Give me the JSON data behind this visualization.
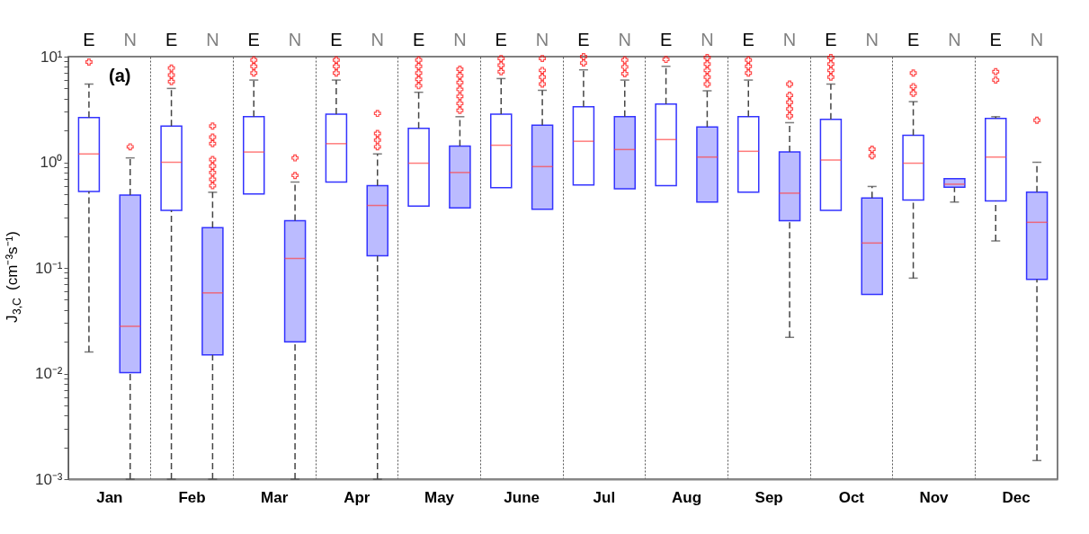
{
  "chart_data": {
    "type": "box",
    "categories": [
      "Jan",
      "Feb",
      "Mar",
      "Apr",
      "May",
      "June",
      "Jul",
      "Aug",
      "Sep",
      "Oct",
      "Nov",
      "Dec"
    ],
    "ylabel": "J$_{3,C}$ (cm⁻³s⁻¹)",
    "annotations": [
      "(a)"
    ],
    "log": true,
    "grid": "x",
    "ylim": [
      0.001,
      10
    ],
    "yticks": [
      {
        "value": 0.001,
        "label": "10⁻³"
      },
      {
        "value": 0.002,
        "label": null
      },
      {
        "value": 0.003,
        "label": null
      },
      {
        "value": 0.004,
        "label": null
      },
      {
        "value": 0.005,
        "label": null
      },
      {
        "value": 0.006,
        "label": null
      },
      {
        "value": 0.007,
        "label": null
      },
      {
        "value": 0.008,
        "label": null
      },
      {
        "value": 0.009,
        "label": null
      },
      {
        "value": 0.01,
        "label": "10⁻²"
      },
      {
        "value": 0.02,
        "label": null
      },
      {
        "value": 0.03,
        "label": null
      },
      {
        "value": 0.04,
        "label": null
      },
      {
        "value": 0.05,
        "label": null
      },
      {
        "value": 0.06,
        "label": null
      },
      {
        "value": 0.07,
        "label": null
      },
      {
        "value": 0.08,
        "label": null
      },
      {
        "value": 0.09,
        "label": null
      },
      {
        "value": 0.1,
        "label": "10⁻¹"
      },
      {
        "value": 0.2,
        "label": null
      },
      {
        "value": 0.3,
        "label": null
      },
      {
        "value": 0.4,
        "label": null
      },
      {
        "value": 0.5,
        "label": null
      },
      {
        "value": 0.6,
        "label": null
      },
      {
        "value": 0.7,
        "label": null
      },
      {
        "value": 0.8,
        "label": null
      },
      {
        "value": 0.9,
        "label": null
      },
      {
        "value": 1,
        "label": "10⁰"
      },
      {
        "value": 2,
        "label": null
      },
      {
        "value": 3,
        "label": null
      },
      {
        "value": 4,
        "label": null
      },
      {
        "value": 5,
        "label": null
      },
      {
        "value": 6,
        "label": null
      },
      {
        "value": 7,
        "label": null
      },
      {
        "value": 8,
        "label": null
      },
      {
        "value": 9,
        "label": null
      },
      {
        "value": 10,
        "label": "10¹"
      }
    ],
    "series": [
      {
        "name": "E",
        "color": "#ffffff",
        "boxes": [
          {
            "low": 0.016,
            "q1": 0.53,
            "median": 1.2,
            "q3": 2.65,
            "high": 5.5,
            "outliers": [
              8.9
            ]
          },
          {
            "low": 0.001,
            "q1": 0.35,
            "median": 1.0,
            "q3": 2.2,
            "high": 5.0,
            "outliers": [
              5.8,
              6.7,
              7.8
            ]
          },
          {
            "low": 0.5,
            "q1": 0.5,
            "median": 1.25,
            "q3": 2.7,
            "high": 6.0,
            "outliers": [
              7,
              8.1,
              9.3
            ]
          },
          {
            "low": 0.65,
            "q1": 0.65,
            "median": 1.5,
            "q3": 2.85,
            "high": 6.0,
            "outliers": [
              7,
              8.1,
              9.3
            ]
          },
          {
            "low": 0.385,
            "q1": 0.385,
            "median": 0.98,
            "q3": 2.1,
            "high": 4.6,
            "outliers": [
              5.3,
              6.1,
              7,
              8.1,
              9.3
            ]
          },
          {
            "low": 0.575,
            "q1": 0.575,
            "median": 1.45,
            "q3": 2.85,
            "high": 6.2,
            "outliers": [
              7.2,
              8.3,
              9.6
            ]
          },
          {
            "low": 0.61,
            "q1": 0.61,
            "median": 1.58,
            "q3": 3.36,
            "high": 7.5,
            "outliers": [
              8.7,
              10
            ]
          },
          {
            "low": 0.6,
            "q1": 0.6,
            "median": 1.64,
            "q3": 3.55,
            "high": 8.1,
            "outliers": [
              9.4
            ]
          },
          {
            "low": 0.52,
            "q1": 0.52,
            "median": 1.27,
            "q3": 2.7,
            "high": 6.0,
            "outliers": [
              7,
              8.1,
              9.3
            ]
          },
          {
            "low": 0.35,
            "q1": 0.35,
            "median": 1.05,
            "q3": 2.55,
            "high": 5.5,
            "outliers": [
              6.4,
              7.4,
              8.5,
              9.8
            ]
          },
          {
            "low": 0.08,
            "q1": 0.44,
            "median": 0.98,
            "q3": 1.8,
            "high": 3.75,
            "outliers": [
              4.5,
              5.2,
              7
            ]
          },
          {
            "low": 0.18,
            "q1": 0.43,
            "median": 1.12,
            "q3": 2.6,
            "high": 2.7,
            "outliers": [
              6,
              7.2
            ]
          }
        ]
      },
      {
        "name": "N",
        "color": "#bbbbff",
        "boxes": [
          {
            "low": 0.001,
            "q1": 0.0102,
            "median": 0.028,
            "q3": 0.49,
            "high": 1.1,
            "outliers": [
              1.4
            ]
          },
          {
            "low": 0.001,
            "q1": 0.015,
            "median": 0.058,
            "q3": 0.24,
            "high": 0.52,
            "outliers": [
              0.6,
              0.69,
              0.8,
              0.92,
              1.06,
              1.5,
              1.73,
              2.2
            ]
          },
          {
            "low": 0.001,
            "q1": 0.02,
            "median": 0.123,
            "q3": 0.28,
            "high": 0.65,
            "outliers": [
              0.75,
              1.1
            ]
          },
          {
            "low": 0.001,
            "q1": 0.13,
            "median": 0.39,
            "q3": 0.6,
            "high": 1.2,
            "outliers": [
              1.4,
              1.62,
              1.87,
              2.9
            ]
          },
          {
            "low": 0.37,
            "q1": 0.37,
            "median": 0.8,
            "q3": 1.42,
            "high": 2.7,
            "outliers": [
              3.1,
              3.6,
              4.2,
              4.9,
              5.7,
              6.6,
              7.6
            ]
          },
          {
            "low": 0.36,
            "q1": 0.36,
            "median": 0.91,
            "q3": 2.24,
            "high": 4.8,
            "outliers": [
              5.5,
              6.4,
              7.4,
              9.6
            ]
          },
          {
            "low": 0.56,
            "q1": 0.56,
            "median": 1.32,
            "q3": 2.7,
            "high": 6.0,
            "outliers": [
              6.9,
              8,
              9.3
            ]
          },
          {
            "low": 0.42,
            "q1": 0.42,
            "median": 1.12,
            "q3": 2.16,
            "high": 4.75,
            "outliers": [
              5.5,
              6.4,
              7.4,
              8.5,
              9.8
            ]
          },
          {
            "low": 0.022,
            "q1": 0.28,
            "median": 0.51,
            "q3": 1.25,
            "high": 2.37,
            "outliers": [
              2.75,
              3.2,
              3.7,
              4.3,
              5.5
            ]
          },
          {
            "low": 0.056,
            "q1": 0.056,
            "median": 0.172,
            "q3": 0.46,
            "high": 0.59,
            "outliers": [
              1.15,
              1.33
            ]
          },
          {
            "low": 0.42,
            "q1": 0.58,
            "median": 0.62,
            "q3": 0.7,
            "high": 0.7
          },
          {
            "low": 0.0015,
            "q1": 0.078,
            "median": 0.27,
            "q3": 0.52,
            "high": 1.0,
            "outliers": [
              2.5
            ]
          }
        ]
      }
    ]
  }
}
